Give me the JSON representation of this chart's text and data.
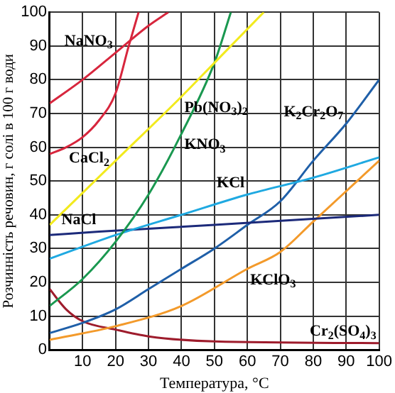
{
  "chart_data": {
    "type": "line",
    "xlabel": "Температура, °C",
    "ylabel": "Розчинність речовин, г солі в 100 г води",
    "xlim": [
      0,
      100
    ],
    "ylim": [
      0,
      100
    ],
    "xticks": [
      {
        "value": 0,
        "label": null
      },
      10,
      20,
      30,
      40,
      50,
      60,
      70,
      80,
      90,
      100
    ],
    "yticks": [
      0,
      10,
      20,
      30,
      40,
      50,
      60,
      70,
      80,
      90,
      100
    ],
    "grid": true,
    "legend": false,
    "marker": "none",
    "line_style": "solid",
    "series": [
      {
        "color": "#d7263d",
        "x": [
          0,
          10,
          20,
          30,
          36
        ],
        "values": [
          73,
          80,
          88,
          96,
          100
        ]
      },
      {
        "color": "#d7263d",
        "x": [
          0,
          5,
          10,
          15,
          20,
          24,
          27
        ],
        "values": [
          58,
          60,
          63,
          68,
          76,
          90,
          100
        ]
      },
      {
        "color": "#f2ea1e",
        "x": [
          0,
          20,
          40,
          50,
          65
        ],
        "values": [
          37,
          56,
          75,
          85,
          100
        ]
      },
      {
        "color": "#1a9850",
        "x": [
          0,
          10,
          20,
          30,
          40,
          50,
          55
        ],
        "values": [
          13,
          21,
          32,
          46,
          64,
          85,
          100
        ]
      },
      {
        "color": "#1fa9e1",
        "x": [
          0,
          20,
          40,
          60,
          80,
          100
        ],
        "values": [
          27,
          34,
          40,
          46,
          51,
          57
        ]
      },
      {
        "color": "#1c2a7a",
        "x": [
          0,
          15,
          50,
          100
        ],
        "values": [
          34,
          35,
          37,
          40
        ]
      },
      {
        "color": "#1f5fa8",
        "x": [
          0,
          10,
          20,
          30,
          40,
          50,
          60,
          70,
          80,
          90,
          100
        ],
        "values": [
          5,
          8,
          12,
          18,
          24,
          30,
          37,
          44,
          56,
          67,
          80
        ]
      },
      {
        "color": "#f39a2b",
        "x": [
          0,
          20,
          40,
          60,
          70,
          80,
          90,
          100
        ],
        "values": [
          3,
          7,
          13,
          24,
          29,
          38,
          47,
          56
        ]
      },
      {
        "color": "#9e1c2c",
        "x": [
          0,
          5,
          10,
          20,
          30,
          50,
          100
        ],
        "values": [
          18,
          12,
          8.5,
          6,
          4,
          2.5,
          2
        ]
      }
    ],
    "annotations": [
      {
        "text": "NaNO$_{3}$",
        "x": 20,
        "y": 88
      },
      {
        "text": "CaCl$_{2}$",
        "x": 5,
        "y": 60
      },
      {
        "text": "Pb(NO$_{3}$)$_{2}$",
        "x": 40,
        "y": 75
      },
      {
        "text": "KNO$_{3}$",
        "x": 40,
        "y": 64
      },
      {
        "text": "K$_{2}$Cr$_{2}$O$_{7}$",
        "x": 90,
        "y": 67
      },
      {
        "text": "KCl",
        "x": 60,
        "y": 46
      },
      {
        "text": "NaCl",
        "x": 15,
        "y": 35
      },
      {
        "text": "KClO$_{3}$",
        "x": 60,
        "y": 24
      },
      {
        "text": "Cr$_{2}$(SO$_{4}$)$_{3}$",
        "x": 100,
        "y": 2
      }
    ]
  }
}
